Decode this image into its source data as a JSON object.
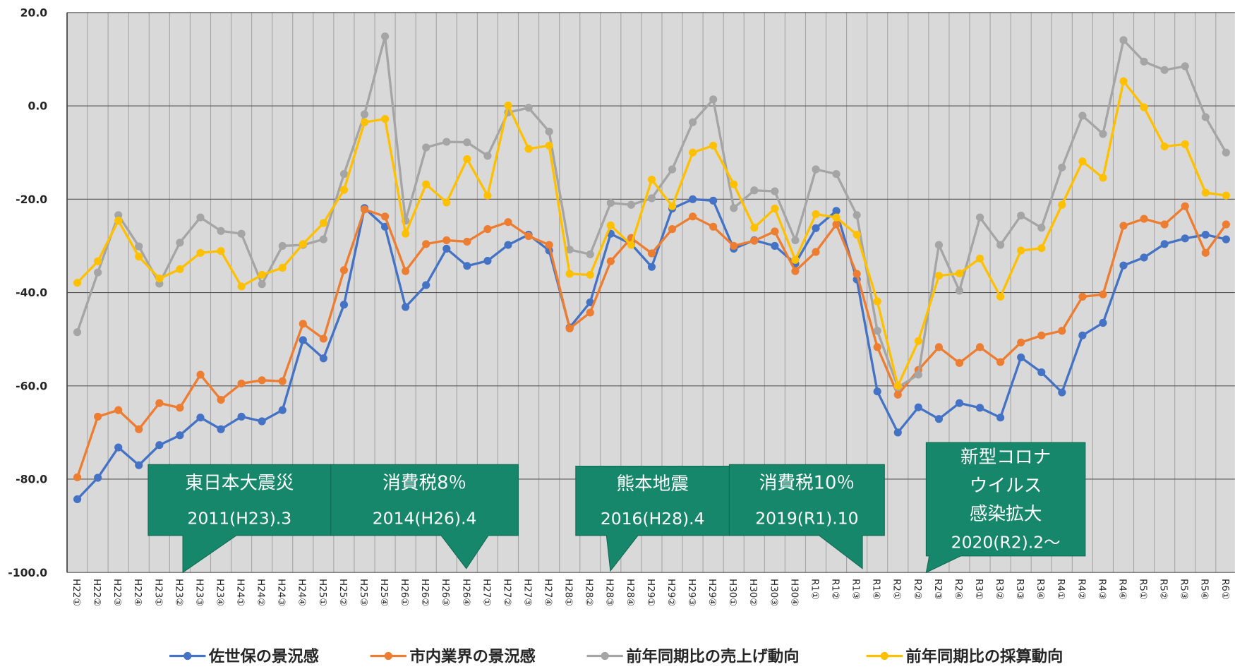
{
  "chart_data": {
    "type": "line",
    "categories": [
      "H22①",
      "H22②",
      "H22③",
      "H22④",
      "H23①",
      "H23②",
      "H23③",
      "H23④",
      "H24①",
      "H24②",
      "H24③",
      "H24④",
      "H25①",
      "H25②",
      "H25③",
      "H25④",
      "H26①",
      "H26②",
      "H26③",
      "H26④",
      "H27①",
      "H27②",
      "H27③",
      "H27④",
      "H28①",
      "H28②",
      "H28③",
      "H28④",
      "H29①",
      "H29②",
      "H29③",
      "H29④",
      "H30①",
      "H30②",
      "H30③",
      "H30④",
      "R1①",
      "R1②",
      "R1③",
      "R1④",
      "R2①",
      "R2②",
      "R2③",
      "R2④",
      "R3①",
      "R3②",
      "R3③",
      "R3④",
      "R4①",
      "R4②",
      "R4③",
      "R4④",
      "R5①",
      "R5②",
      "R5③",
      "R5④",
      "R6①"
    ],
    "series": [
      {
        "name": "佐世保の景況感",
        "color": "#4472c4",
        "values": [
          -84.3,
          -79.7,
          -73.2,
          -77.0,
          -72.7,
          -70.6,
          -66.8,
          -69.3,
          -66.6,
          -67.6,
          -65.2,
          -50.2,
          -54.1,
          -42.6,
          -21.9,
          -25.9,
          -43.1,
          -38.4,
          -30.6,
          -34.3,
          -33.2,
          -29.8,
          -27.6,
          -31.0,
          -47.5,
          -42.1,
          -27.4,
          -29.6,
          -34.5,
          -22.0,
          -20.0,
          -20.3,
          -30.6,
          -28.8,
          -30.0,
          -33.8,
          -26.2,
          -22.5,
          -37.2,
          -61.2,
          -70.0,
          -64.6,
          -67.1,
          -63.7,
          -64.7,
          -66.8,
          -53.9,
          -57.1,
          -61.4,
          -49.2,
          -46.5,
          -34.2,
          -32.5,
          -29.6,
          -28.4,
          -27.6,
          -28.6
        ]
      },
      {
        "name": "市内業界の景況感",
        "color": "#ed7d31",
        "values": [
          -79.6,
          -66.6,
          -65.2,
          -69.3,
          -63.7,
          -64.7,
          -57.6,
          -63.0,
          -59.5,
          -58.8,
          -59.0,
          -46.7,
          -49.9,
          -35.2,
          -22.2,
          -23.7,
          -35.4,
          -29.6,
          -28.8,
          -29.1,
          -26.4,
          -24.9,
          -27.9,
          -29.8,
          -47.7,
          -44.3,
          -33.3,
          -28.3,
          -31.6,
          -26.4,
          -23.7,
          -25.9,
          -30.0,
          -28.9,
          -26.9,
          -35.4,
          -31.3,
          -25.4,
          -36.0,
          -51.7,
          -61.9,
          -56.6,
          -51.7,
          -55.1,
          -51.7,
          -54.9,
          -50.7,
          -49.2,
          -48.2,
          -40.9,
          -40.4,
          -25.7,
          -24.2,
          -25.4,
          -21.5,
          -31.5,
          -25.4
        ]
      },
      {
        "name": "前年同期比の売上げ動向",
        "color": "#a5a5a5",
        "values": [
          -48.5,
          -35.7,
          -23.4,
          -30.1,
          -38.1,
          -29.3,
          -23.9,
          -26.8,
          -27.4,
          -38.2,
          -30.0,
          -29.8,
          -28.6,
          -14.6,
          -1.8,
          14.9,
          -24.6,
          -8.9,
          -7.7,
          -7.8,
          -10.7,
          -1.4,
          -0.4,
          -5.5,
          -30.8,
          -31.8,
          -20.8,
          -21.2,
          -19.8,
          -13.6,
          -3.5,
          1.4,
          -21.9,
          -18.1,
          -18.3,
          -28.8,
          -13.6,
          -14.6,
          -23.4,
          -48.2,
          -60.3,
          -57.6,
          -29.8,
          -39.6,
          -23.9,
          -29.8,
          -23.5,
          -26.1,
          -13.2,
          -2.1,
          -6.0,
          14.1,
          9.5,
          7.7,
          8.5,
          -2.4,
          -10.0
        ]
      },
      {
        "name": "前年同期比の採算動向",
        "color": "#ffc000",
        "values": [
          -37.9,
          -33.3,
          -24.6,
          -32.3,
          -37.0,
          -35.0,
          -31.5,
          -31.1,
          -38.7,
          -36.2,
          -34.7,
          -29.6,
          -25.1,
          -18.0,
          -3.5,
          -2.8,
          -27.4,
          -16.8,
          -20.7,
          -11.4,
          -19.2,
          0.1,
          -9.2,
          -8.5,
          -36.0,
          -36.2,
          -25.6,
          -29.8,
          -15.8,
          -21.5,
          -10.0,
          -8.5,
          -16.8,
          -26.1,
          -22.0,
          -33.0,
          -23.2,
          -23.9,
          -27.6,
          -41.9,
          -60.0,
          -50.4,
          -36.4,
          -35.9,
          -32.7,
          -40.9,
          -31.0,
          -30.5,
          -21.2,
          -11.9,
          -15.4,
          5.3,
          -0.3,
          -8.7,
          -8.2,
          -18.6,
          -19.2
        ]
      }
    ],
    "ylim": [
      -100,
      20
    ],
    "yticks": [
      {
        "value": 20,
        "label": "20.0"
      },
      {
        "value": 0,
        "label": "0.0"
      },
      {
        "value": -20,
        "label": "-20.0"
      },
      {
        "value": -40,
        "label": "-40.0"
      },
      {
        "value": -60,
        "label": "-60.0"
      },
      {
        "value": -80,
        "label": "-80.0"
      },
      {
        "value": -100,
        "label": "-100.0"
      }
    ],
    "grid": true,
    "legend": "bottom",
    "annotations": [
      {
        "lines": [
          "東日本大震災",
          "2011(H23).3"
        ]
      },
      {
        "lines": [
          "消費税8％",
          "2014(H26).4"
        ]
      },
      {
        "lines": [
          "熊本地震",
          "2016(H28).4"
        ]
      },
      {
        "lines": [
          "消費税10％",
          "2019(R1).10"
        ]
      },
      {
        "lines": [
          "新型コロナ",
          "ウイルス",
          "感染拡大",
          "2020(R2).2～"
        ]
      }
    ]
  }
}
